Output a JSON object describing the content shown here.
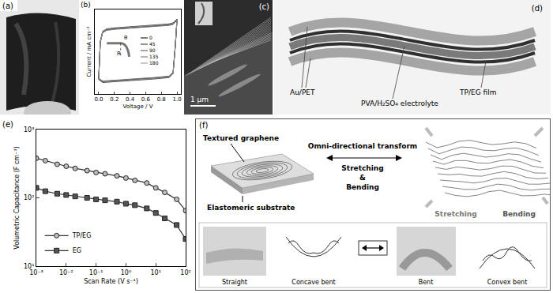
{
  "panels": {
    "a": {
      "label": "(a)"
    },
    "b": {
      "label": "(b)"
    },
    "c": {
      "label": "(c)",
      "scale_bar": "1 μm"
    },
    "d": {
      "label": "(d)",
      "au_pet": "Au/PET",
      "electrolyte": "PVA/H₂SO₄ electrolyte",
      "film": "TP/EG film"
    },
    "e": {
      "label": "(e)"
    },
    "f": {
      "label": "(f)",
      "textured": "Textured graphene",
      "substrate": "Elastomeric substrate",
      "transform": "Omni-directional transform",
      "stretching_left": "Stretching",
      "and": "&",
      "bending_left": "Bending",
      "stretching_right": "Stretching",
      "bending_right": "Bending",
      "straight": "Straight",
      "concave": "Concave bent",
      "bent": "Bent",
      "convex": "Convex bent"
    }
  },
  "chart_data": [
    {
      "type": "line",
      "x_label": "Voltage / V",
      "y_label": "Current / mA cm⁻²",
      "x": [
        0,
        0.02,
        0.05,
        0.1,
        0.2,
        0.3,
        0.4,
        0.5,
        0.6,
        0.7,
        0.8,
        0.9,
        0.95,
        1.0,
        0.98,
        0.95,
        0.9,
        0.8,
        0.7,
        0.6,
        0.5,
        0.4,
        0.3,
        0.2,
        0.1,
        0.05,
        0
      ],
      "series": [
        {
          "name": "0",
          "color": "#000000",
          "values": [
            -0.5,
            0.25,
            0.45,
            0.5,
            0.52,
            0.53,
            0.54,
            0.55,
            0.56,
            0.57,
            0.58,
            0.6,
            0.62,
            0.7,
            0.2,
            -0.38,
            -0.46,
            -0.48,
            -0.49,
            -0.5,
            -0.51,
            -0.52,
            -0.53,
            -0.54,
            -0.55,
            -0.56,
            -0.5
          ]
        },
        {
          "name": "45",
          "color": "#2a2a2a",
          "values": [
            -0.49,
            0.24,
            0.44,
            0.49,
            0.51,
            0.52,
            0.53,
            0.54,
            0.55,
            0.56,
            0.57,
            0.59,
            0.61,
            0.69,
            0.19,
            -0.37,
            -0.45,
            -0.47,
            -0.48,
            -0.49,
            -0.5,
            -0.51,
            -0.52,
            -0.53,
            -0.54,
            -0.55,
            -0.49
          ]
        },
        {
          "name": "90",
          "color": "#4d4d4d",
          "values": [
            -0.51,
            0.26,
            0.46,
            0.51,
            0.53,
            0.54,
            0.55,
            0.56,
            0.57,
            0.58,
            0.59,
            0.61,
            0.63,
            0.71,
            0.21,
            -0.39,
            -0.47,
            -0.49,
            -0.5,
            -0.51,
            -0.52,
            -0.53,
            -0.54,
            -0.55,
            -0.56,
            -0.57,
            -0.51
          ]
        },
        {
          "name": "135",
          "color": "#6e6e6e",
          "values": [
            -0.48,
            0.23,
            0.43,
            0.48,
            0.5,
            0.51,
            0.52,
            0.53,
            0.54,
            0.55,
            0.56,
            0.58,
            0.6,
            0.68,
            0.18,
            -0.36,
            -0.44,
            -0.46,
            -0.47,
            -0.48,
            -0.49,
            -0.5,
            -0.51,
            -0.52,
            -0.53,
            -0.54,
            -0.48
          ]
        },
        {
          "name": "180",
          "color": "#909090",
          "values": [
            -0.5,
            0.24,
            0.45,
            0.5,
            0.52,
            0.53,
            0.54,
            0.55,
            0.56,
            0.57,
            0.58,
            0.6,
            0.62,
            0.7,
            0.2,
            -0.38,
            -0.46,
            -0.48,
            -0.49,
            -0.5,
            -0.51,
            -0.52,
            -0.53,
            -0.54,
            -0.55,
            -0.56,
            -0.5
          ]
        }
      ],
      "xlim": [
        -0.05,
        1.05
      ],
      "xticks": [
        {
          "value": 0,
          "label": "0.0"
        },
        0.2,
        0.4,
        0.6,
        0.8,
        {
          "value": 1,
          "label": "1.0"
        }
      ],
      "ylim": [
        -0.8,
        0.9
      ],
      "tick_labels": "x",
      "grid": false,
      "legend": "right",
      "annotations": [
        "R",
        "θ"
      ]
    },
    {
      "type": "line",
      "log": true,
      "x_label": "Scan Rate (V s⁻¹)",
      "y_label": "Volumetric Capacitance (F cm⁻³)",
      "x": [
        0.001,
        0.002,
        0.005,
        0.01,
        0.02,
        0.05,
        0.1,
        0.2,
        0.5,
        1,
        2,
        5,
        10,
        20,
        50,
        100
      ],
      "series": [
        {
          "name": "TP/EG",
          "color": "#bdbdbd",
          "marker": "circle",
          "values": [
            380,
            350,
            310,
            290,
            270,
            250,
            235,
            225,
            210,
            195,
            180,
            165,
            140,
            120,
            95,
            65
          ]
        },
        {
          "name": "EG",
          "color": "#555555",
          "marker": "square",
          "values": [
            140,
            125,
            115,
            110,
            105,
            100,
            95,
            92,
            88,
            82,
            78,
            70,
            60,
            50,
            40,
            25
          ]
        }
      ],
      "xlim": [
        0.001,
        100
      ],
      "xticks": [
        {
          "value": 0.001,
          "label": "10⁻³"
        },
        {
          "value": 0.01,
          "label": "10⁻²"
        },
        {
          "value": 0.1,
          "label": "10⁻¹"
        },
        {
          "value": 1,
          "label": "10⁰"
        },
        {
          "value": 10,
          "label": "10¹"
        },
        {
          "value": 100,
          "label": "10²"
        }
      ],
      "ylim": [
        10,
        1000
      ],
      "yticks": [
        {
          "value": 10,
          "label": "10¹"
        },
        {
          "value": 100,
          "label": "10²"
        },
        {
          "value": 1000,
          "label": "10³"
        }
      ],
      "grid": false,
      "legend": "lower left"
    }
  ]
}
